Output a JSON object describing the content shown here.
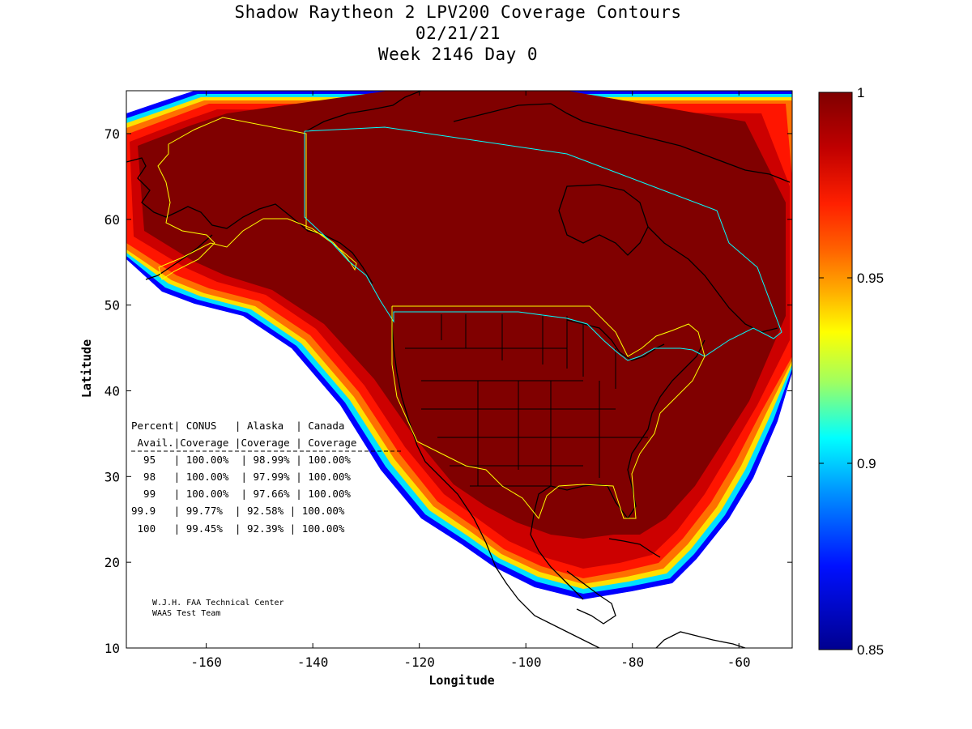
{
  "title": {
    "line1": "Shadow Raytheon 2 LPV200 Coverage Contours",
    "line2": "02/21/21",
    "line3": "Week 2146 Day 0"
  },
  "axes": {
    "xlabel": "Longitude",
    "ylabel": "Latitude",
    "xticks": [
      "-160",
      "-140",
      "-120",
      "-100",
      "-80",
      "-60"
    ],
    "yticks": [
      "70",
      "60",
      "50",
      "40",
      "30",
      "20",
      "10"
    ]
  },
  "colorbar": {
    "labels": [
      "1",
      "0.95",
      "0.9",
      "0.85"
    ],
    "colors": [
      "#7f0000",
      "#ff0000",
      "#ff8000",
      "#ffff00",
      "#00ffff",
      "#0080ff",
      "#0000ff",
      "#00008f"
    ]
  },
  "table": {
    "header1": "Percent| CONUS   | Alaska  | Canada",
    "header2": " Avail.|Coverage |Coverage | Coverage",
    "rows": [
      "  95   | 100.00%  | 98.99% | 100.00%",
      "  98   | 100.00%  | 97.99% | 100.00%",
      "  99   | 100.00%  | 97.66% | 100.00%",
      "99.9   | 99.77%  | 92.58% | 100.00%",
      " 100   | 99.45%  | 92.39% | 100.00%"
    ]
  },
  "credit": {
    "line1": "W.J.H. FAA Technical Center",
    "line2": "WAAS Test Team"
  }
}
